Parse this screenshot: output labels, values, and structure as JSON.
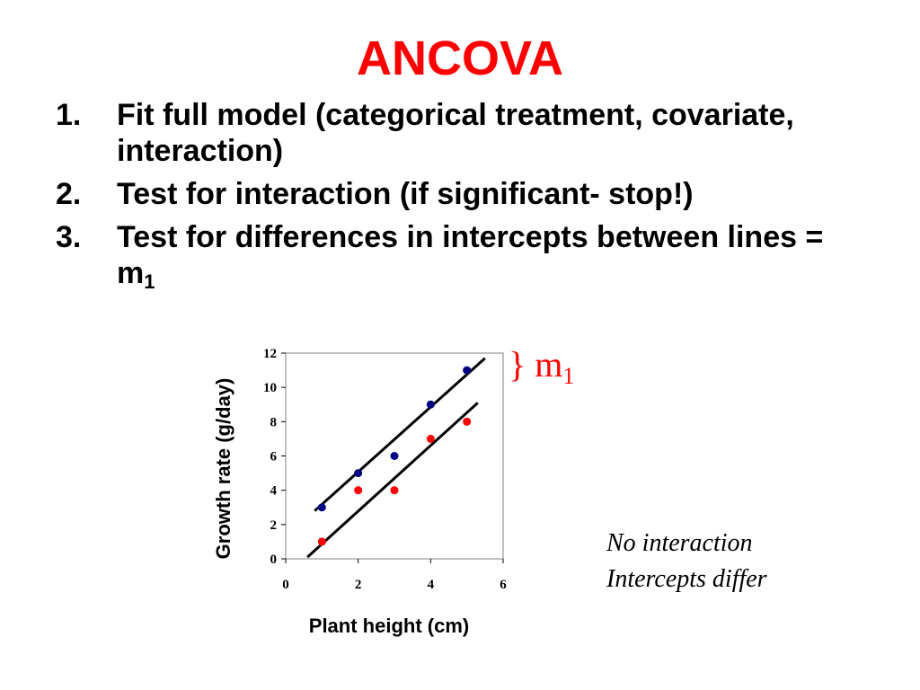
{
  "slide": {
    "title": "ANCOVA",
    "items": [
      {
        "num": "1.",
        "text": "Fit full model (categorical treatment, covariate, interaction)"
      },
      {
        "num": "2.",
        "text": "Test for interaction (if significant- stop!)"
      },
      {
        "num": "3.",
        "text": "Test for differences in intercepts between lines = m",
        "sub": "1"
      }
    ],
    "annotation": {
      "brace": "}",
      "m": "m",
      "sub": "1"
    },
    "note": {
      "line1": "No interaction",
      "line2": "Intercepts differ"
    }
  },
  "colors": {
    "title": "#ff0000",
    "series_upper": "#000080",
    "series_lower": "#ff0000",
    "fit_line": "#000000"
  },
  "chart_data": {
    "type": "scatter",
    "xlabel": "Plant height (cm)",
    "ylabel": "Growth rate (g/day)",
    "xlim": [
      0,
      6
    ],
    "ylim": [
      0,
      12
    ],
    "xticks": [
      "0",
      "2",
      "4",
      "6"
    ],
    "yticks": [
      "0",
      "2",
      "4",
      "6",
      "8",
      "10",
      "12"
    ],
    "grid": false,
    "series": [
      {
        "color": "#000080",
        "x": [
          1,
          2,
          3,
          4,
          5
        ],
        "y": [
          3,
          5,
          6,
          9,
          11
        ]
      },
      {
        "color": "#ff0000",
        "x": [
          1,
          2,
          3,
          4,
          5
        ],
        "y": [
          1,
          4,
          4,
          7,
          8
        ]
      }
    ],
    "fit_lines": [
      {
        "x": [
          0.8,
          5.5
        ],
        "y": [
          2.8,
          11.7
        ]
      },
      {
        "x": [
          0.6,
          5.3
        ],
        "y": [
          0.1,
          9.1
        ]
      }
    ]
  }
}
